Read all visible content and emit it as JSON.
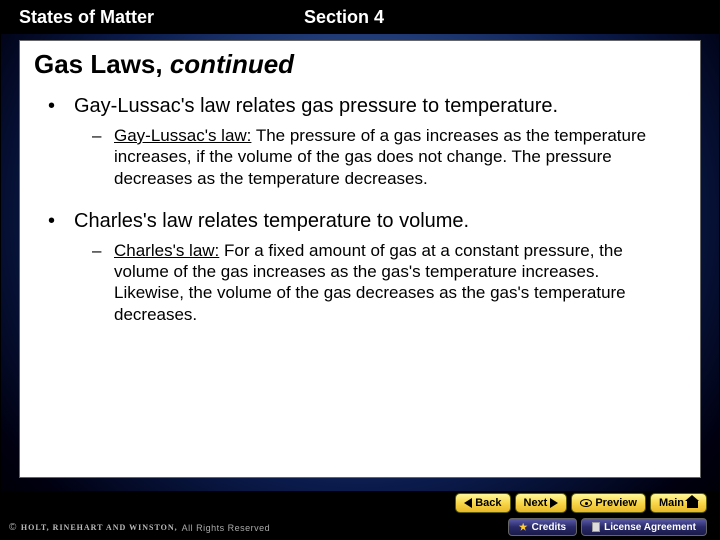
{
  "header": {
    "left": "States of Matter",
    "right": "Section 4"
  },
  "title": {
    "main": "Gas Laws, ",
    "italic": "continued"
  },
  "bullets": [
    {
      "level": 1,
      "text": "Gay-Lussac's law relates gas pressure to temperature."
    },
    {
      "level": 2,
      "term": "Gay-Lussac's law:",
      "rest": " The pressure of a gas increases as the temperature increases, if the volume of the gas does not change. The pressure decreases as the temperature decreases."
    },
    {
      "level": 1,
      "text": "Charles's law relates temperature to volume."
    },
    {
      "level": 2,
      "term": "Charles's law:",
      "rest": " For a fixed amount of gas at a constant pressure, the volume of the gas increases as the gas's temperature increases. Likewise, the volume of the gas decreases as the gas's temperature decreases."
    }
  ],
  "nav": {
    "back": "Back",
    "next": "Next",
    "preview": "Preview",
    "main": "Main"
  },
  "links": {
    "credits": "Credits",
    "license": "License Agreement"
  },
  "copyright": {
    "symbol": "©",
    "brand": "HOLT, RINEHART AND WINSTON,",
    "rest": "All Rights Reserved"
  }
}
